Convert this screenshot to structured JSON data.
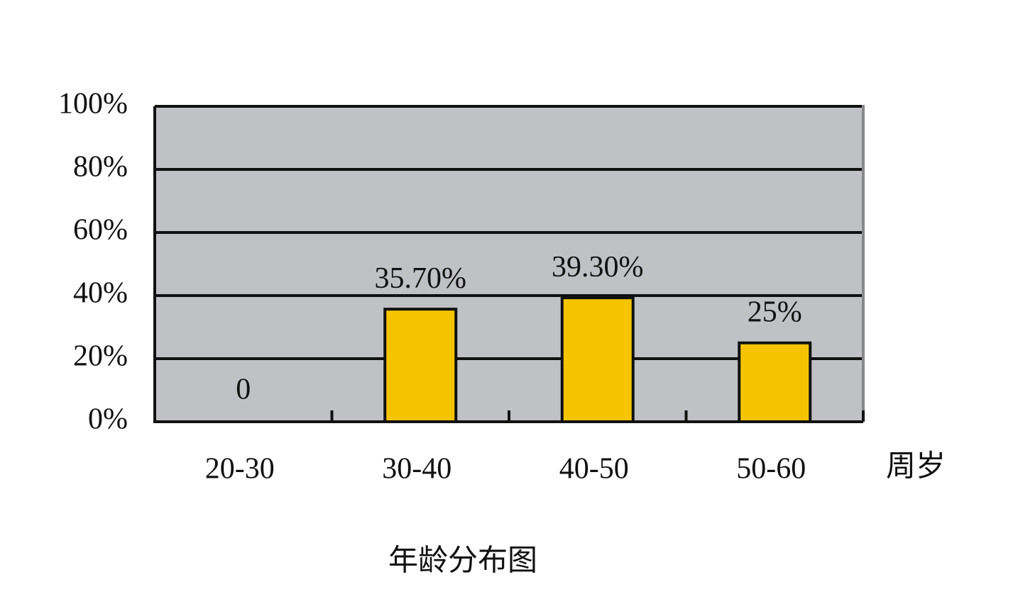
{
  "chart_data": {
    "type": "bar",
    "title": "年龄分布图",
    "x_label": "周岁",
    "categories": [
      "20-30",
      "30-40",
      "40-50",
      "50-60"
    ],
    "values": [
      0,
      35.7,
      39.3,
      25
    ],
    "value_labels": [
      "0",
      "35.70%",
      "39.30%",
      "25%"
    ],
    "color": "#f5c400",
    "ylim": [
      0,
      100
    ],
    "yticks": [
      {
        "value": 0,
        "label": "0%"
      },
      {
        "value": 20,
        "label": "20%"
      },
      {
        "value": 40,
        "label": "40%"
      },
      {
        "value": 60,
        "label": "60%"
      },
      {
        "value": 80,
        "label": "80%"
      },
      {
        "value": 100,
        "label": "100%"
      }
    ],
    "grid": true
  }
}
